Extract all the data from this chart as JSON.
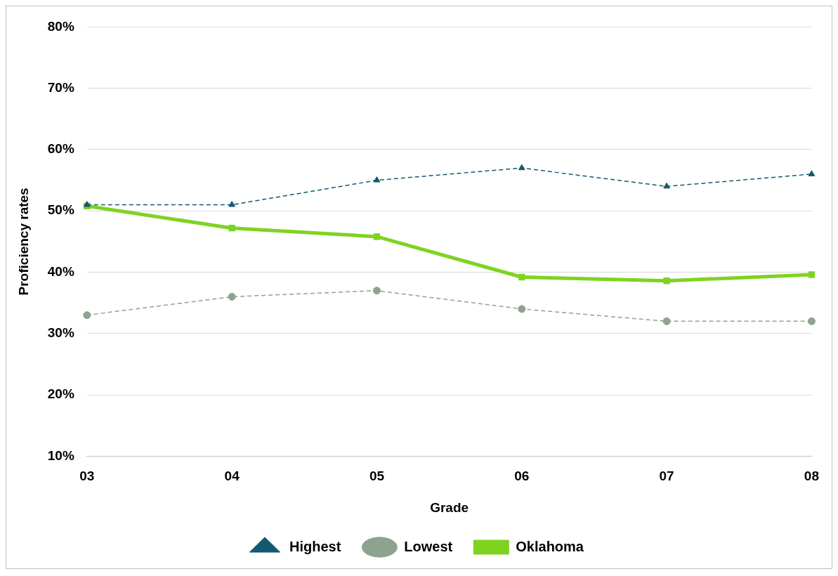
{
  "chart_data": {
    "type": "line",
    "xlabel": "Grade",
    "ylabel": "Proficiency rates",
    "categories": [
      "03",
      "04",
      "05",
      "06",
      "07",
      "08"
    ],
    "series": [
      {
        "name": "Oklahoma",
        "color": "#7ed321",
        "marker": "square",
        "line_style": "solid",
        "values": [
          50.8,
          47.2,
          45.8,
          39.2,
          38.6,
          39.6
        ]
      },
      {
        "name": "Highest",
        "color": "#145a6e",
        "marker": "triangle",
        "line_style": "dashed",
        "values": [
          51,
          51,
          55,
          57,
          54,
          56
        ]
      },
      {
        "name": "Lowest",
        "color": "#8fa290",
        "marker": "circle",
        "line_style": "dashed",
        "values": [
          33,
          36,
          37,
          34,
          32,
          32
        ]
      }
    ],
    "ylim": [
      10,
      80
    ],
    "yticks": [
      {
        "value": 10,
        "label": "10%"
      },
      {
        "value": 20,
        "label": "20%"
      },
      {
        "value": 30,
        "label": "30%"
      },
      {
        "value": 40,
        "label": "40%"
      },
      {
        "value": 50,
        "label": "50%"
      },
      {
        "value": 60,
        "label": "60%"
      },
      {
        "value": 70,
        "label": "70%"
      },
      {
        "value": 80,
        "label": "80%"
      }
    ],
    "grid": "y",
    "legend": "bottom"
  }
}
